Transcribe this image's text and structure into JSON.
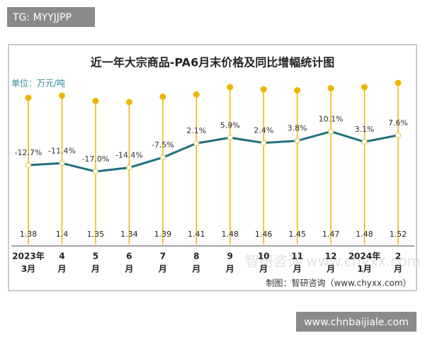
{
  "badge": "TG: MYYJJPP",
  "footer_badge": "www.chnbaijiale.com",
  "chart_data": {
    "type": "combo",
    "title": "近一年大宗商品-PA6月末价格及同比增幅统计图",
    "unit": "单位：万元/吨",
    "source": "制图：智研咨询（www.chyxx.com）",
    "watermark": "智研咨询 www.chyxx.com",
    "categories": [
      [
        "2023年",
        "3月"
      ],
      [
        "4",
        "月"
      ],
      [
        "5",
        "月"
      ],
      [
        "6",
        "月"
      ],
      [
        "7",
        "月"
      ],
      [
        "8",
        "月"
      ],
      [
        "9",
        "月"
      ],
      [
        "10",
        "月"
      ],
      [
        "11",
        "月"
      ],
      [
        "12",
        "月"
      ],
      [
        "2024年",
        "1月"
      ],
      [
        "2",
        "月"
      ]
    ],
    "ylim": [
      0,
      1.6
    ],
    "y2lim": [
      -30,
      20
    ],
    "series": [
      {
        "type": "lollipop",
        "color": "#f0b400",
        "values": [
          1.38,
          1.4,
          1.35,
          1.34,
          1.39,
          1.41,
          1.48,
          1.46,
          1.45,
          1.47,
          1.48,
          1.52
        ]
      },
      {
        "type": "line",
        "axis": "y2",
        "color": "#1f6f80",
        "values": [
          -12.7,
          -11.4,
          -17.0,
          -14.4,
          -7.5,
          2.1,
          5.9,
          2.4,
          3.8,
          10.1,
          3.1,
          7.6
        ],
        "value_labels": [
          "-12.7%",
          "-11.4%",
          "-17.0%",
          "-14.4%",
          "-7.5%",
          "2.1%",
          "5.9%",
          "2.4%",
          "3.8%",
          "10.1%",
          "3.1%",
          "7.6%"
        ]
      }
    ]
  }
}
